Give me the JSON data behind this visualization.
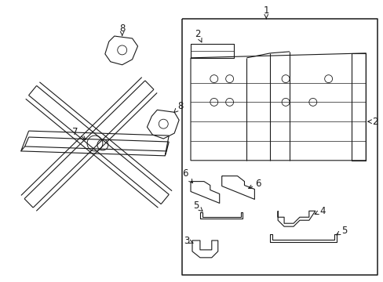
{
  "bg_color": "#ffffff",
  "line_color": "#1a1a1a",
  "lw": 0.8
}
